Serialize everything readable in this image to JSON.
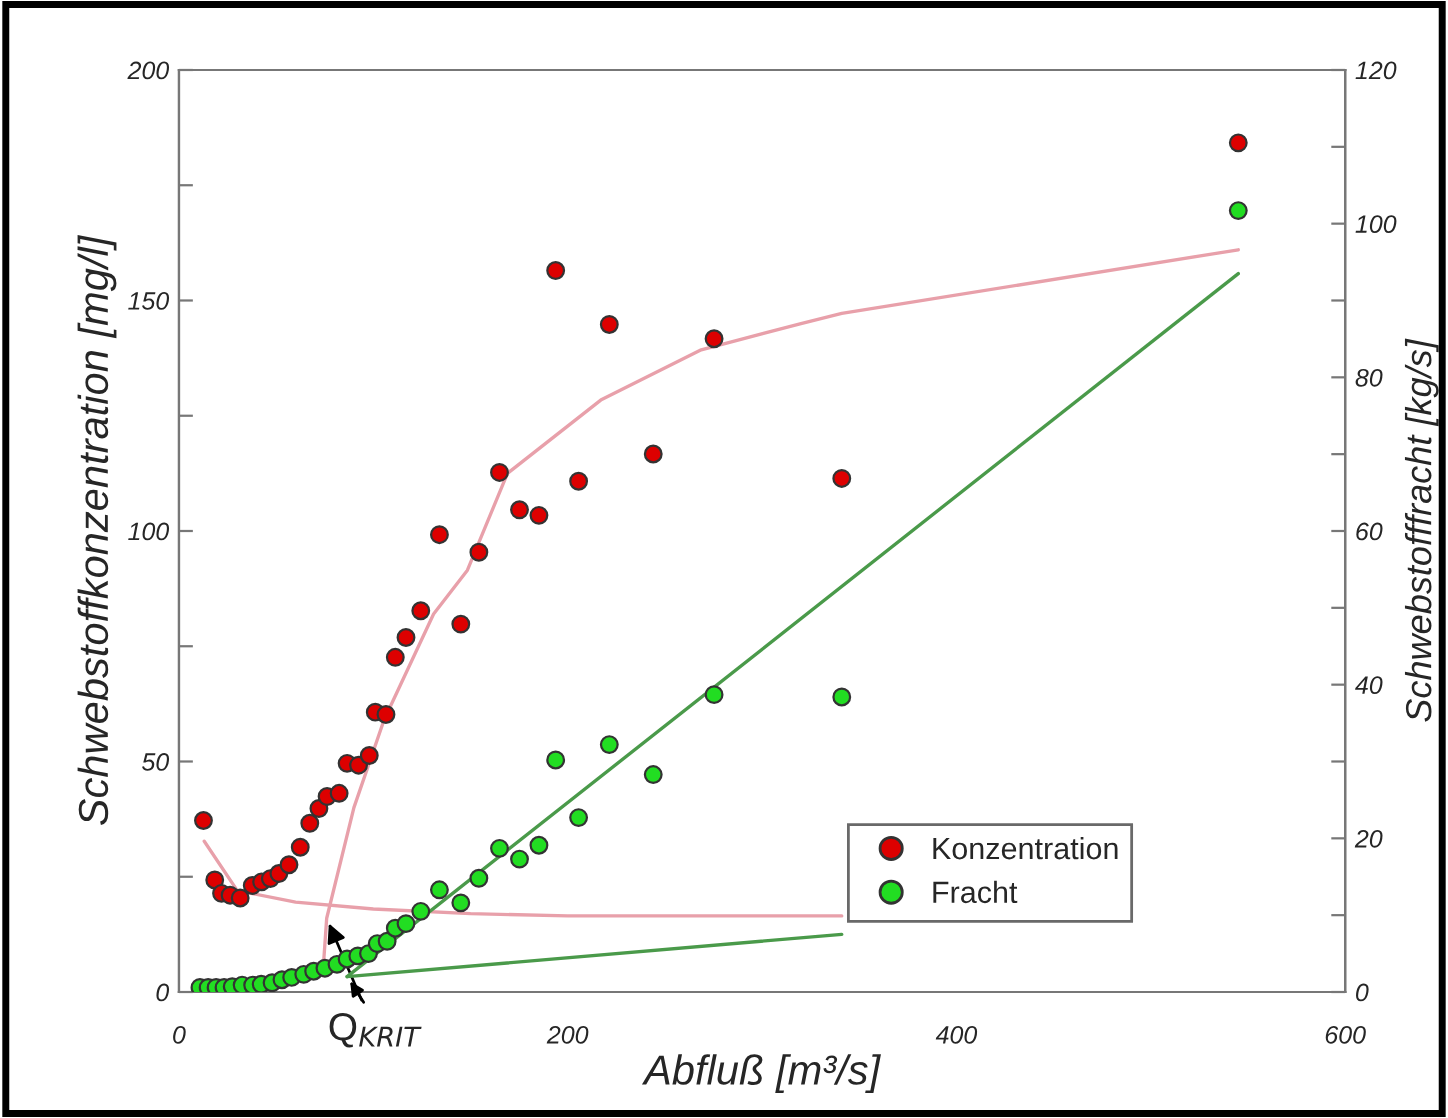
{
  "chart_data": {
    "type": "scatter",
    "xlabel": "Abfluß [m³/s]",
    "ylabel": "Schwebstoffkonzentration [mg/l]",
    "y2label": "Schwebstofffracht [kg/s]",
    "xlim": [
      0,
      600
    ],
    "xticks": [
      0,
      200,
      400,
      600
    ],
    "ylim": [
      0,
      200
    ],
    "yticks": [
      0,
      {
        "value": 25,
        "label": null
      },
      50,
      {
        "value": 75,
        "label": null
      },
      100,
      {
        "value": 125,
        "label": null
      },
      150,
      {
        "value": 175,
        "label": null
      },
      200
    ],
    "y2lim": [
      0,
      120
    ],
    "y2ticks": [
      0,
      {
        "value": 10,
        "label": null
      },
      20,
      {
        "value": 30,
        "label": null
      },
      40,
      {
        "value": 50,
        "label": null
      },
      60,
      {
        "value": 70,
        "label": null
      },
      80,
      {
        "value": 90,
        "label": null
      },
      100,
      {
        "value": 110,
        "label": null
      },
      120
    ],
    "legend": "bottom right",
    "grid": false,
    "annotations": [
      {
        "text": "Q$_{KRIT}$",
        "x": 76,
        "y": 16
      }
    ],
    "series": [
      {
        "type": "line",
        "color": "#e8a0aa",
        "x": [
          13,
          30,
          60,
          100,
          150,
          200,
          341
        ],
        "values": [
          32.7,
          22,
          19.5,
          18,
          17,
          16.5,
          16.5
        ]
      },
      {
        "type": "line",
        "color": "#e8a0aa",
        "x": [
          74.5,
          76,
          90,
          105.5,
          131,
          148.4,
          169,
          217,
          268.7,
          320,
          341,
          545
        ],
        "values": [
          6.9,
          16,
          40,
          59,
          82,
          91.5,
          112.5,
          128.4,
          139.3,
          145,
          147.2,
          161
        ]
      },
      {
        "type": "line",
        "axis": "y2",
        "color": "#4a9a4a",
        "x": [
          86.5,
          341
        ],
        "values": [
          2.0,
          7.5
        ]
      },
      {
        "type": "line",
        "axis": "y2",
        "color": "#4a9a4a",
        "x": [
          86.5,
          545
        ],
        "values": [
          2.0,
          93.5
        ]
      },
      {
        "name": "Konzentration",
        "color": "#dd0000",
        "marker": "circle",
        "x": [
          12.6,
          18.4,
          21.9,
          26.3,
          31.5,
          37.7,
          42.5,
          47,
          51.4,
          56.6,
          62.4,
          67.3,
          72,
          76.2,
          82.4,
          86.5,
          92.4,
          97.9,
          101,
          106.5,
          111.3,
          116.8,
          124.4,
          134,
          145,
          154.3,
          164.9,
          175.2,
          185.2,
          193.8,
          205.6,
          221.4,
          244,
          275.3,
          341,
          545
        ],
        "values": [
          37.2,
          24.3,
          21.4,
          21.0,
          20.4,
          23.1,
          23.9,
          24.6,
          25.7,
          27.6,
          31.4,
          36.6,
          39.8,
          42.4,
          43.1,
          49.6,
          49.2,
          51.3,
          60.7,
          60.2,
          72.6,
          76.9,
          82.7,
          99.2,
          79.8,
          95.4,
          112.7,
          104.6,
          103.4,
          156.5,
          110.8,
          144.8,
          116.7,
          141.7,
          111.4,
          184.2
        ]
      },
      {
        "axis": "y2",
        "name": "Fracht",
        "color": "#22dd22",
        "marker": "circle",
        "x": [
          10.8,
          15,
          19.1,
          23.2,
          27.4,
          32.5,
          37.9,
          42.3,
          47.9,
          53,
          58,
          64.2,
          69.3,
          75.1,
          81.3,
          86.5,
          92,
          97.5,
          102,
          107.1,
          111.3,
          116.8,
          124.4,
          134,
          145,
          154.3,
          164.9,
          175.2,
          185.2,
          193.8,
          205.6,
          221.4,
          244,
          275.3,
          341,
          545
        ],
        "values": [
          0.6,
          0.6,
          0.6,
          0.6,
          0.7,
          0.9,
          0.9,
          1.0,
          1.2,
          1.6,
          1.9,
          2.3,
          2.7,
          3.1,
          3.6,
          4.3,
          4.7,
          5.0,
          6.3,
          6.6,
          8.3,
          8.9,
          10.5,
          13.3,
          11.6,
          14.8,
          18.7,
          17.3,
          19.1,
          30.2,
          22.7,
          32.2,
          28.3,
          38.7,
          38.4,
          101.7
        ]
      }
    ]
  }
}
